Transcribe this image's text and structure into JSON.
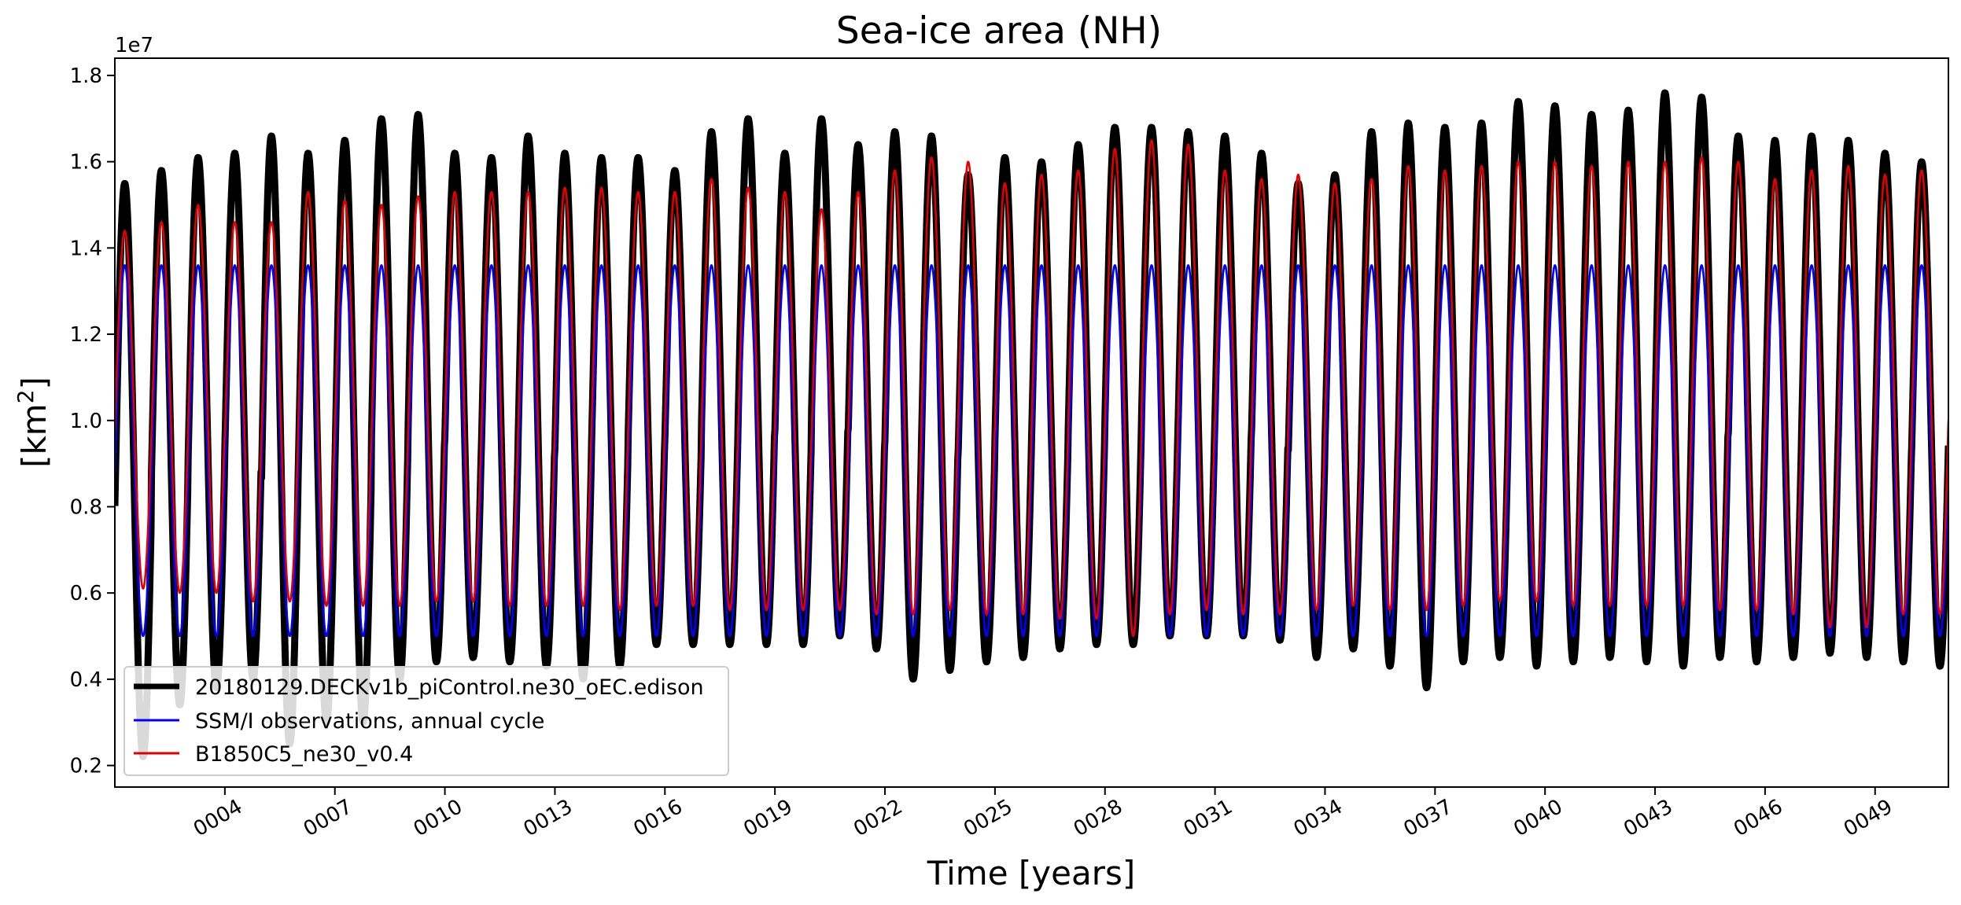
{
  "chart_data": {
    "type": "line",
    "title": "Sea-ice area (NH)",
    "xlabel": "Time [years]",
    "ylabel_main": "[km",
    "ylabel_sup": "2",
    "ylabel_end": "]",
    "y_offset_label": "1e7",
    "xlim": [
      1,
      51
    ],
    "ylim": [
      0.15,
      1.84
    ],
    "x_ticks": [
      {
        "value": 4,
        "label": "0004"
      },
      {
        "value": 7,
        "label": "0007"
      },
      {
        "value": 10,
        "label": "0010"
      },
      {
        "value": 13,
        "label": "0013"
      },
      {
        "value": 16,
        "label": "0016"
      },
      {
        "value": 19,
        "label": "0019"
      },
      {
        "value": 22,
        "label": "0022"
      },
      {
        "value": 25,
        "label": "0025"
      },
      {
        "value": 28,
        "label": "0028"
      },
      {
        "value": 31,
        "label": "0031"
      },
      {
        "value": 34,
        "label": "0034"
      },
      {
        "value": 37,
        "label": "0037"
      },
      {
        "value": 40,
        "label": "0040"
      },
      {
        "value": 43,
        "label": "0043"
      },
      {
        "value": 46,
        "label": "0046"
      },
      {
        "value": 49,
        "label": "0049"
      }
    ],
    "y_ticks": [
      {
        "value": 0.2,
        "label": "0.2"
      },
      {
        "value": 0.4,
        "label": "0.4"
      },
      {
        "value": 0.6,
        "label": "0.6"
      },
      {
        "value": 0.8,
        "label": "0.8"
      },
      {
        "value": 1.0,
        "label": "1.0"
      },
      {
        "value": 1.2,
        "label": "1.2"
      },
      {
        "value": 1.4,
        "label": "1.4"
      },
      {
        "value": 1.6,
        "label": "1.6"
      },
      {
        "value": 1.8,
        "label": "1.8"
      }
    ],
    "grid": false,
    "legend_position": "lower-left",
    "series": [
      {
        "name": "20180129.DECKv1b_piControl.ne30_oEC.edison",
        "color": "#000000",
        "line_width": "thick",
        "annual_max": [
          1.55,
          1.58,
          1.61,
          1.62,
          1.66,
          1.62,
          1.65,
          1.7,
          1.71,
          1.62,
          1.61,
          1.66,
          1.62,
          1.61,
          1.61,
          1.58,
          1.67,
          1.7,
          1.62,
          1.7,
          1.64,
          1.67,
          1.66,
          1.57,
          1.61,
          1.6,
          1.64,
          1.68,
          1.68,
          1.67,
          1.66,
          1.62,
          1.55,
          1.57,
          1.67,
          1.69,
          1.68,
          1.69,
          1.74,
          1.73,
          1.71,
          1.72,
          1.76,
          1.75,
          1.66,
          1.65,
          1.66,
          1.65,
          1.62,
          1.6
        ],
        "annual_min": [
          0.22,
          0.34,
          0.38,
          0.4,
          0.25,
          0.3,
          0.3,
          0.4,
          0.44,
          0.45,
          0.44,
          0.43,
          0.4,
          0.43,
          0.48,
          0.48,
          0.48,
          0.48,
          0.48,
          0.5,
          0.47,
          0.4,
          0.42,
          0.44,
          0.45,
          0.47,
          0.48,
          0.48,
          0.5,
          0.5,
          0.5,
          0.49,
          0.45,
          0.47,
          0.43,
          0.38,
          0.44,
          0.45,
          0.43,
          0.44,
          0.45,
          0.44,
          0.43,
          0.45,
          0.44,
          0.45,
          0.46,
          0.45,
          0.44,
          0.43
        ]
      },
      {
        "name": "SSM/I observations, annual cycle",
        "color": "#0000ff",
        "line_width": "thin",
        "annual_max": [
          1.36
        ],
        "annual_min": [
          0.5
        ]
      },
      {
        "name": "B1850C5_ne30_v0.4",
        "color": "#e00000",
        "line_width": "thin",
        "annual_max": [
          1.44,
          1.46,
          1.5,
          1.46,
          1.46,
          1.53,
          1.51,
          1.5,
          1.52,
          1.53,
          1.53,
          1.53,
          1.54,
          1.54,
          1.53,
          1.53,
          1.56,
          1.54,
          1.53,
          1.49,
          1.53,
          1.58,
          1.61,
          1.6,
          1.55,
          1.57,
          1.58,
          1.63,
          1.65,
          1.64,
          1.58,
          1.56,
          1.57,
          1.55,
          1.56,
          1.59,
          1.58,
          1.59,
          1.6,
          1.6,
          1.59,
          1.6,
          1.6,
          1.61,
          1.6,
          1.56,
          1.58,
          1.59,
          1.57,
          1.58
        ],
        "annual_min": [
          0.61,
          0.6,
          0.6,
          0.58,
          0.58,
          0.57,
          0.57,
          0.57,
          0.58,
          0.58,
          0.57,
          0.57,
          0.57,
          0.56,
          0.57,
          0.57,
          0.56,
          0.56,
          0.56,
          0.56,
          0.55,
          0.55,
          0.56,
          0.55,
          0.55,
          0.54,
          0.54,
          0.5,
          0.55,
          0.56,
          0.55,
          0.55,
          0.56,
          0.57,
          0.56,
          0.56,
          0.57,
          0.58,
          0.58,
          0.57,
          0.57,
          0.57,
          0.57,
          0.56,
          0.56,
          0.55,
          0.52,
          0.52,
          0.55,
          0.55
        ]
      }
    ]
  }
}
